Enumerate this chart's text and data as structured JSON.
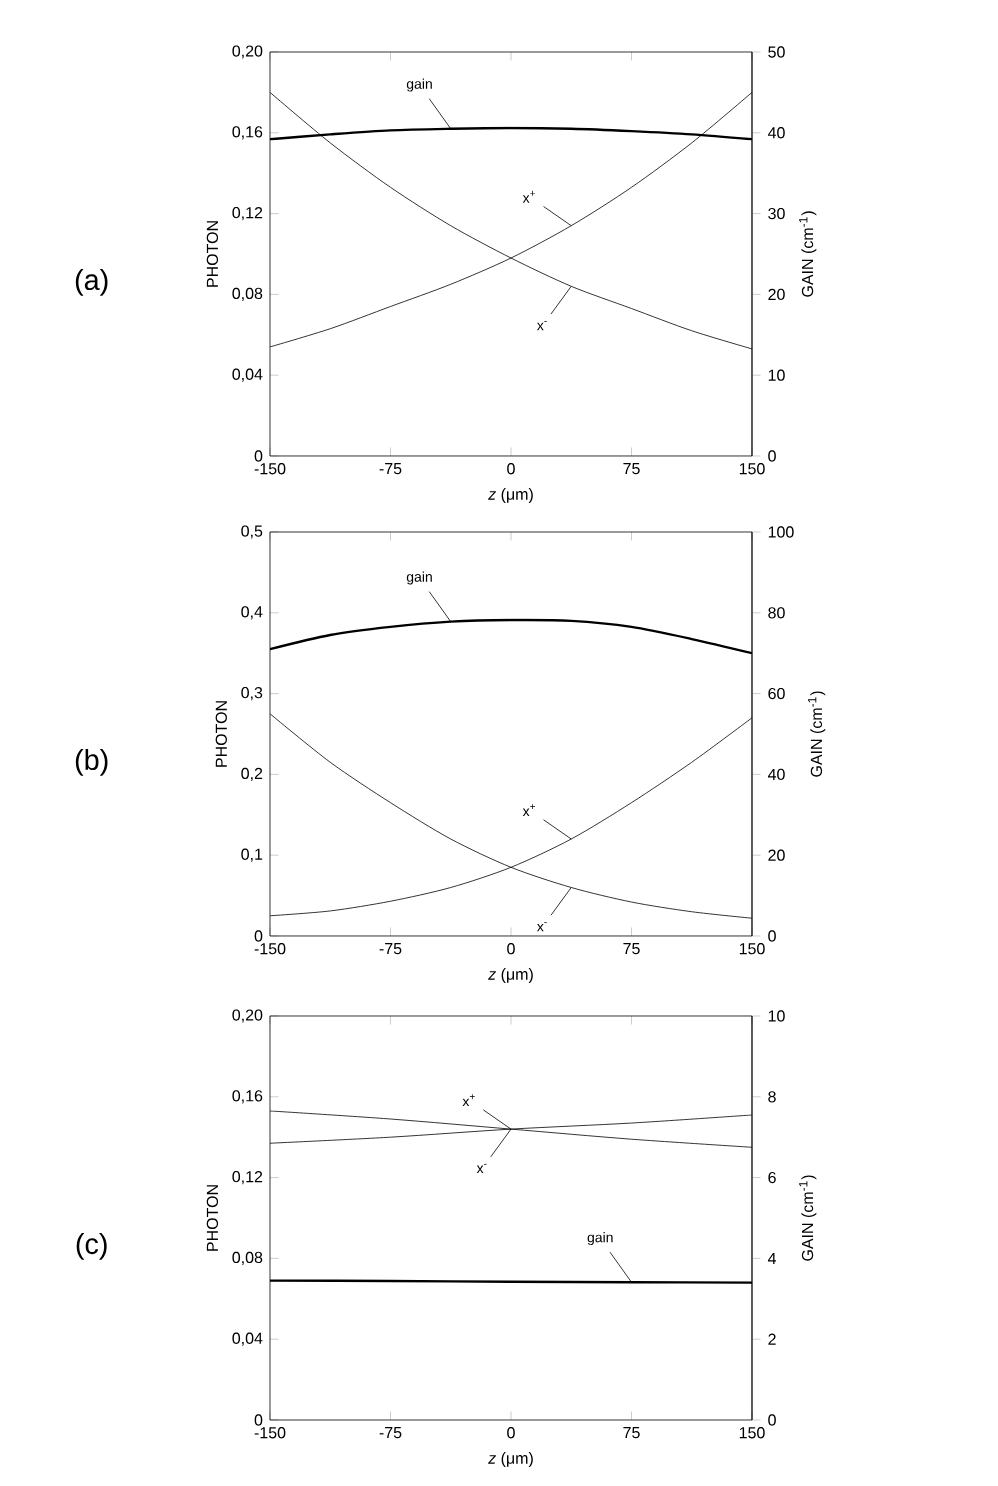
{
  "chart_data": [
    {
      "type": "line",
      "title": "(a)",
      "xlabel": "*z* (μm)",
      "ylabel": "PHOTON",
      "y2label": "GAIN (cm$^{-1}$)",
      "x": [
        -150,
        -112.5,
        -75,
        -37.5,
        0,
        37.5,
        75,
        112.5,
        150
      ],
      "series": [
        {
          "name": "x$^{+}$",
          "color": "#000000",
          "values": [
            0.054,
            0.063,
            0.074,
            0.085,
            0.098,
            0.114,
            0.133,
            0.155,
            0.18
          ]
        },
        {
          "name": "x$^{-}$",
          "color": "#000000",
          "values": [
            0.18,
            0.155,
            0.133,
            0.114,
            0.098,
            0.084,
            0.073,
            0.062,
            0.053
          ]
        },
        {
          "name": "gain",
          "color": "#000000",
          "axis": "y2",
          "values": [
            39.2,
            39.8,
            40.3,
            40.5,
            40.6,
            40.5,
            40.2,
            39.8,
            39.2
          ]
        }
      ],
      "xlim": [
        -150,
        150
      ],
      "xticks": [
        -150,
        -75,
        0,
        75,
        150
      ],
      "ylim": [
        0,
        0.2
      ],
      "yticks": [
        {
          "value": 0,
          "label": "0"
        },
        {
          "value": 0.04,
          "label": "0,04"
        },
        {
          "value": 0.08,
          "label": "0,08"
        },
        {
          "value": 0.12,
          "label": "0,12"
        },
        {
          "value": 0.16,
          "label": "0,16"
        },
        {
          "value": 0.2,
          "label": "0,20"
        }
      ],
      "y2lim": [
        0,
        50
      ],
      "y2ticks": [
        0,
        10,
        20,
        30,
        40,
        50
      ],
      "marker": "none",
      "line_style": "solid",
      "grid": false
    },
    {
      "type": "line",
      "title": "(b)",
      "xlabel": "*z* (μm)",
      "ylabel": "PHOTON",
      "y2label": "GAIN (cm$^{-1}$)",
      "x": [
        -150,
        -112.5,
        -75,
        -37.5,
        0,
        37.5,
        75,
        112.5,
        150
      ],
      "series": [
        {
          "name": "x$^{+}$",
          "color": "#000000",
          "values": [
            0.025,
            0.031,
            0.043,
            0.06,
            0.085,
            0.12,
            0.165,
            0.215,
            0.27
          ]
        },
        {
          "name": "x$^{-}$",
          "color": "#000000",
          "values": [
            0.275,
            0.215,
            0.165,
            0.12,
            0.085,
            0.06,
            0.042,
            0.03,
            0.022
          ]
        },
        {
          "name": "gain",
          "color": "#000000",
          "axis": "y2",
          "values": [
            71,
            74.5,
            76.5,
            77.8,
            78.2,
            78,
            76.5,
            73.5,
            70
          ]
        }
      ],
      "xlim": [
        -150,
        150
      ],
      "xticks": [
        -150,
        -75,
        0,
        75,
        150
      ],
      "ylim": [
        0,
        0.5
      ],
      "yticks": [
        {
          "value": 0,
          "label": "0"
        },
        {
          "value": 0.1,
          "label": "0,1"
        },
        {
          "value": 0.2,
          "label": "0,2"
        },
        {
          "value": 0.3,
          "label": "0,3"
        },
        {
          "value": 0.4,
          "label": "0,4"
        },
        {
          "value": 0.5,
          "label": "0,5"
        }
      ],
      "y2lim": [
        0,
        100
      ],
      "y2ticks": [
        0,
        20,
        40,
        60,
        80,
        100
      ],
      "marker": "none",
      "line_style": "solid",
      "grid": false
    },
    {
      "type": "line",
      "title": "(c)",
      "xlabel": "*z* (μm)",
      "ylabel": "PHOTON",
      "y2label": "GAIN (cm$^{-1}$)",
      "x": [
        -150,
        -75,
        0,
        75,
        150
      ],
      "series": [
        {
          "name": "x$^{+}$",
          "color": "#000000",
          "values": [
            0.137,
            0.14,
            0.144,
            0.147,
            0.151
          ]
        },
        {
          "name": "x$^{-}$",
          "color": "#000000",
          "values": [
            0.153,
            0.149,
            0.144,
            0.139,
            0.135
          ]
        },
        {
          "name": "gain",
          "color": "#000000",
          "axis": "y2",
          "values": [
            3.45,
            3.44,
            3.42,
            3.41,
            3.4
          ]
        }
      ],
      "xlim": [
        -150,
        150
      ],
      "xticks": [
        -150,
        -75,
        0,
        75,
        150
      ],
      "ylim": [
        0,
        0.2
      ],
      "yticks": [
        {
          "value": 0,
          "label": "0"
        },
        {
          "value": 0.04,
          "label": "0,04"
        },
        {
          "value": 0.08,
          "label": "0,08"
        },
        {
          "value": 0.12,
          "label": "0,12"
        },
        {
          "value": 0.16,
          "label": "0,16"
        },
        {
          "value": 0.2,
          "label": "0,20"
        }
      ],
      "y2lim": [
        0,
        10
      ],
      "y2ticks": [
        0,
        2,
        4,
        6,
        8,
        10
      ],
      "marker": "none",
      "line_style": "solid",
      "grid": false
    }
  ]
}
